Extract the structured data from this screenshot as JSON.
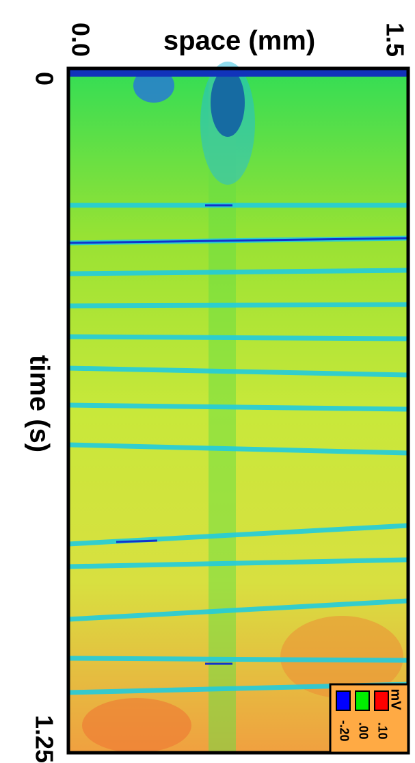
{
  "chart_data": {
    "type": "heatmap",
    "xlabel": "space (mm)",
    "ylabel": "time (s)",
    "xlim": [
      0,
      1.5
    ],
    "xticks": [
      {
        "value": 0,
        "label": "0.0"
      },
      {
        "value": 1.5,
        "label": "1.5"
      }
    ],
    "ylim": [
      0,
      1.25
    ],
    "yticks": [
      0,
      1.25
    ],
    "colorbar": {
      "label": "mV",
      "colors": [
        "#0000ff",
        "#00ee00",
        "#ff0000"
      ],
      "ticks": [
        {
          "value": -0.2,
          "label": "-.20"
        },
        {
          "value": 0,
          "label": ".00"
        },
        {
          "value": 0.1,
          "label": ".10"
        }
      ]
    }
  }
}
